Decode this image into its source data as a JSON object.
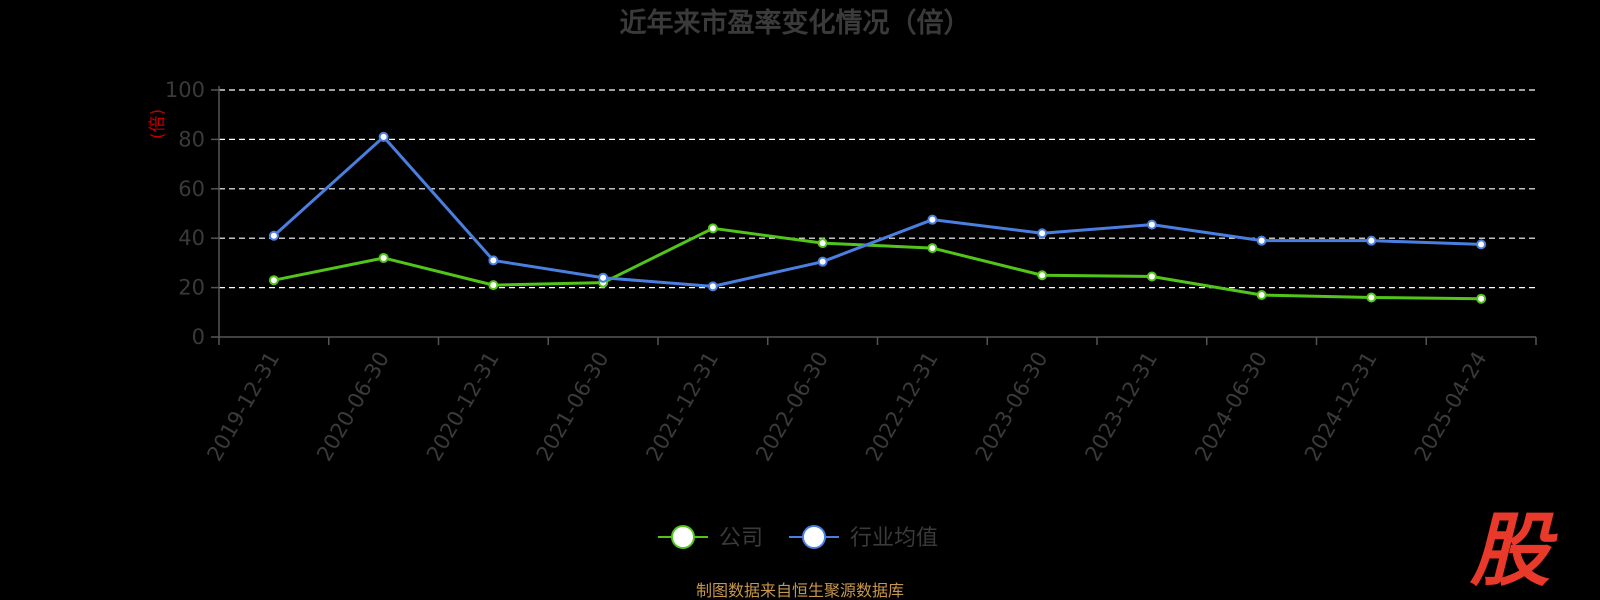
{
  "chart_data": {
    "type": "line",
    "title": "近年来市盈率变化情况（倍）",
    "ylabel": "(倍)",
    "xlabel": "",
    "ylim": [
      0,
      100
    ],
    "yticks": [
      0,
      20,
      40,
      60,
      80,
      100
    ],
    "grid": true,
    "legend_position": "bottom",
    "categories": [
      "2019-12-31",
      "2020-06-30",
      "2020-12-31",
      "2021-06-30",
      "2021-12-31",
      "2022-06-30",
      "2022-12-31",
      "2023-06-30",
      "2023-12-31",
      "2024-06-30",
      "2024-12-31",
      "2025-04-24"
    ],
    "series": [
      {
        "name": "公司",
        "color": "#52c41a",
        "values": [
          23.0,
          32.0,
          21.0,
          22.0,
          44.0,
          38.0,
          36.0,
          25.0,
          24.5,
          17.0,
          16.0,
          15.5
        ]
      },
      {
        "name": "行业均值",
        "color": "#4a7fe0",
        "values": [
          41.0,
          81.0,
          31.0,
          24.0,
          20.5,
          30.5,
          47.5,
          42.0,
          45.5,
          39.0,
          39.0,
          37.5
        ]
      }
    ]
  },
  "source_text": "制图数据来自恒生聚源数据库",
  "watermark_text": "股"
}
